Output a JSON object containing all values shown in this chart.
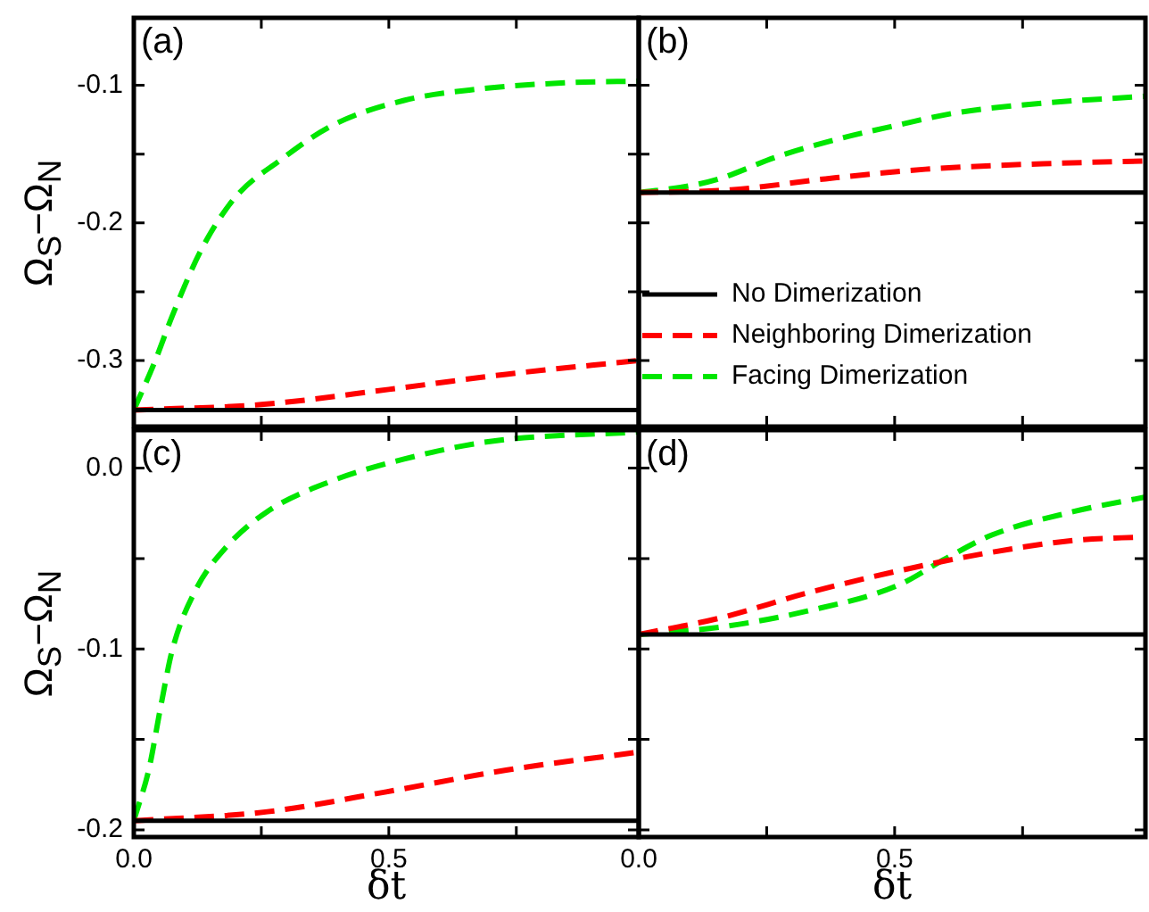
{
  "chart_data": [
    {
      "type": "line",
      "ylabel": "Ω$_{S}$−Ω$_{N}$",
      "annotations": [
        "(a)"
      ],
      "xlim": [
        0,
        0.99
      ],
      "ylim": [
        -0.348,
        -0.051
      ],
      "xticks": [
        {
          "value": 0,
          "label": null
        },
        {
          "value": 0.25,
          "label": null
        },
        {
          "value": 0.5,
          "label": null
        },
        {
          "value": 0.75,
          "label": null
        }
      ],
      "yticks": [
        {
          "value": -0.1,
          "label": "-0.1"
        },
        {
          "value": -0.15,
          "label": null
        },
        {
          "value": -0.2,
          "label": "-0.2"
        },
        {
          "value": -0.25,
          "label": null
        },
        {
          "value": -0.3,
          "label": "-0.3"
        }
      ],
      "tick_labels": "y",
      "series": [
        {
          "color": "#000000",
          "line_style": "solid",
          "x": [
            0,
            0.99
          ],
          "values": [
            -0.336,
            -0.336
          ]
        },
        {
          "color": "#ff0000",
          "line_style": "dashed",
          "x": [
            0,
            0.25,
            0.5,
            0.73,
            0.99
          ],
          "values": [
            -0.336,
            -0.332,
            -0.321,
            -0.31,
            -0.3
          ]
        },
        {
          "color": "#00e600",
          "line_style": "dashed",
          "x": [
            0,
            0.04,
            0.076,
            0.133,
            0.2,
            0.285,
            0.39,
            0.53,
            0.67,
            0.857,
            0.99
          ],
          "values": [
            -0.336,
            -0.302,
            -0.267,
            -0.219,
            -0.181,
            -0.155,
            -0.129,
            -0.111,
            -0.103,
            -0.098,
            -0.097
          ]
        }
      ]
    },
    {
      "type": "line",
      "annotations": [
        "(b)"
      ],
      "xlim": [
        0,
        0.99
      ],
      "ylim": [
        -0.348,
        -0.051
      ],
      "xticks": [
        {
          "value": 0,
          "label": null
        },
        {
          "value": 0.25,
          "label": null
        },
        {
          "value": 0.5,
          "label": null
        },
        {
          "value": 0.75,
          "label": null
        }
      ],
      "yticks": [
        {
          "value": -0.1,
          "label": null
        },
        {
          "value": -0.15,
          "label": null
        },
        {
          "value": -0.2,
          "label": null
        },
        {
          "value": -0.25,
          "label": null
        },
        {
          "value": -0.3,
          "label": null
        }
      ],
      "tick_labels": false,
      "legend": "bottom left",
      "series": [
        {
          "name": "No Dimerization",
          "color": "#000000",
          "line_style": "solid",
          "x": [
            0,
            0.99
          ],
          "values": [
            -0.178,
            -0.178
          ]
        },
        {
          "name": "Neighboring Dimerization",
          "color": "#ff0000",
          "line_style": "dashed",
          "x": [
            0,
            0.18,
            0.365,
            0.56,
            0.79,
            0.99
          ],
          "values": [
            -0.178,
            -0.176,
            -0.168,
            -0.161,
            -0.157,
            -0.155
          ]
        },
        {
          "name": "Facing Dimerization",
          "color": "#00e600",
          "line_style": "dashed",
          "x": [
            0,
            0.1,
            0.157,
            0.27,
            0.39,
            0.505,
            0.62,
            0.79,
            0.99
          ],
          "values": [
            -0.178,
            -0.173,
            -0.168,
            -0.152,
            -0.139,
            -0.129,
            -0.12,
            -0.113,
            -0.108
          ]
        }
      ]
    },
    {
      "type": "line",
      "xlabel": "δt",
      "ylabel": "Ω$_{S}$−Ω$_{N}$",
      "annotations": [
        "(c)"
      ],
      "xlim": [
        0,
        0.99
      ],
      "ylim": [
        -0.204,
        0.021
      ],
      "xticks": [
        {
          "value": 0,
          "label": "0.0"
        },
        {
          "value": 0.25,
          "label": null
        },
        {
          "value": 0.5,
          "label": "0.5"
        },
        {
          "value": 0.75,
          "label": null
        }
      ],
      "yticks": [
        {
          "value": 0,
          "label": "0.0"
        },
        {
          "value": -0.05,
          "label": null
        },
        {
          "value": -0.1,
          "label": "-0.1"
        },
        {
          "value": -0.15,
          "label": null
        },
        {
          "value": -0.2,
          "label": "-0.2"
        }
      ],
      "series": [
        {
          "color": "#000000",
          "line_style": "solid",
          "x": [
            0,
            0.99
          ],
          "values": [
            -0.195,
            -0.195
          ]
        },
        {
          "color": "#ff0000",
          "line_style": "dashed",
          "x": [
            0,
            0.262,
            0.495,
            0.73,
            0.99
          ],
          "values": [
            -0.195,
            -0.19,
            -0.179,
            -0.167,
            -0.157
          ]
        },
        {
          "color": "#00e600",
          "line_style": "dashed",
          "x": [
            0,
            0.03,
            0.052,
            0.076,
            0.122,
            0.18,
            0.262,
            0.38,
            0.53,
            0.705,
            0.99
          ],
          "values": [
            -0.195,
            -0.166,
            -0.133,
            -0.1,
            -0.067,
            -0.044,
            -0.024,
            -0.008,
            0.005,
            0.015,
            0.02
          ]
        }
      ]
    },
    {
      "type": "line",
      "xlabel": "δt",
      "annotations": [
        "(d)"
      ],
      "xlim": [
        0,
        0.99
      ],
      "ylim": [
        -0.204,
        0.021
      ],
      "xticks": [
        {
          "value": 0,
          "label": "0.0"
        },
        {
          "value": 0.25,
          "label": null
        },
        {
          "value": 0.5,
          "label": "0.5"
        },
        {
          "value": 0.75,
          "label": null
        }
      ],
      "yticks": [
        {
          "value": 0,
          "label": null
        },
        {
          "value": -0.05,
          "label": null
        },
        {
          "value": -0.1,
          "label": null
        },
        {
          "value": -0.15,
          "label": null
        },
        {
          "value": -0.2,
          "label": null
        }
      ],
      "tick_labels": "x",
      "series": [
        {
          "color": "#000000",
          "line_style": "solid",
          "x": [
            0,
            0.99
          ],
          "values": [
            -0.092,
            -0.092
          ]
        },
        {
          "color": "#ff0000",
          "line_style": "dashed",
          "x": [
            0,
            0.157,
            0.33,
            0.505,
            0.68,
            0.85,
            0.99
          ],
          "values": [
            -0.092,
            -0.083,
            -0.069,
            -0.057,
            -0.047,
            -0.04,
            -0.038
          ]
        },
        {
          "color": "#00e600",
          "line_style": "dashed",
          "x": [
            0,
            0.157,
            0.33,
            0.505,
            0.6,
            0.69,
            0.85,
            0.99
          ],
          "values": [
            -0.092,
            -0.088,
            -0.079,
            -0.065,
            -0.05,
            -0.037,
            -0.024,
            -0.016
          ]
        }
      ]
    }
  ]
}
